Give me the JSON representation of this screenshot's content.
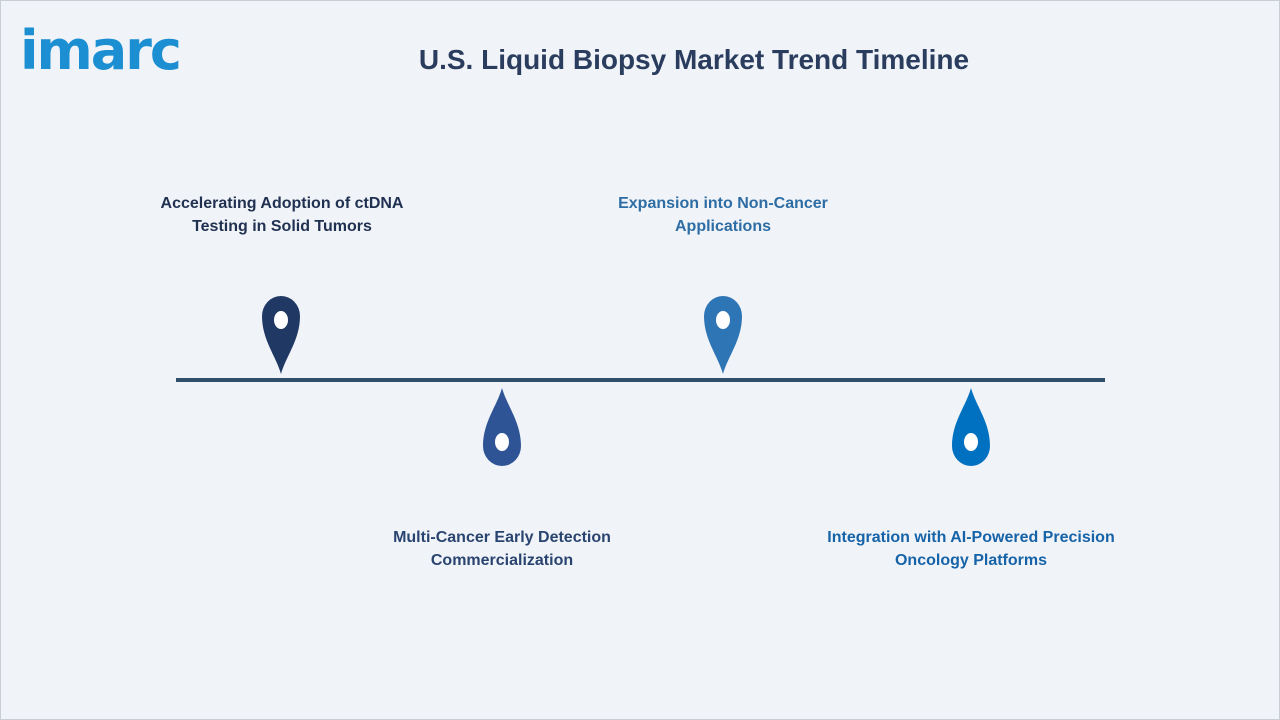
{
  "brand": {
    "logo_text": "imarc",
    "logo_color": "#1b8fd2"
  },
  "title": "U.S. Liquid Biopsy Market Trend Timeline",
  "timeline": {
    "line_color": "#2f4f6b",
    "milestones": [
      {
        "label": "Accelerating Adoption of ctDNA Testing in Solid Tumors",
        "position": "above",
        "color": "#1f3864",
        "text_color": "#1f3050",
        "icon": "map-pin-icon"
      },
      {
        "label": "Multi-Cancer Early Detection Commercialization",
        "position": "below",
        "color": "#2f5496",
        "text_color": "#2a4470",
        "icon": "drop-pin-icon"
      },
      {
        "label": "Expansion into Non-Cancer Applications",
        "position": "above",
        "color": "#2e75b6",
        "text_color": "#2e6da4",
        "icon": "map-pin-icon"
      },
      {
        "label": "Integration with AI-Powered Precision Oncology Platforms",
        "position": "below",
        "color": "#0070c0",
        "text_color": "#1663a8",
        "icon": "drop-pin-icon"
      }
    ]
  }
}
